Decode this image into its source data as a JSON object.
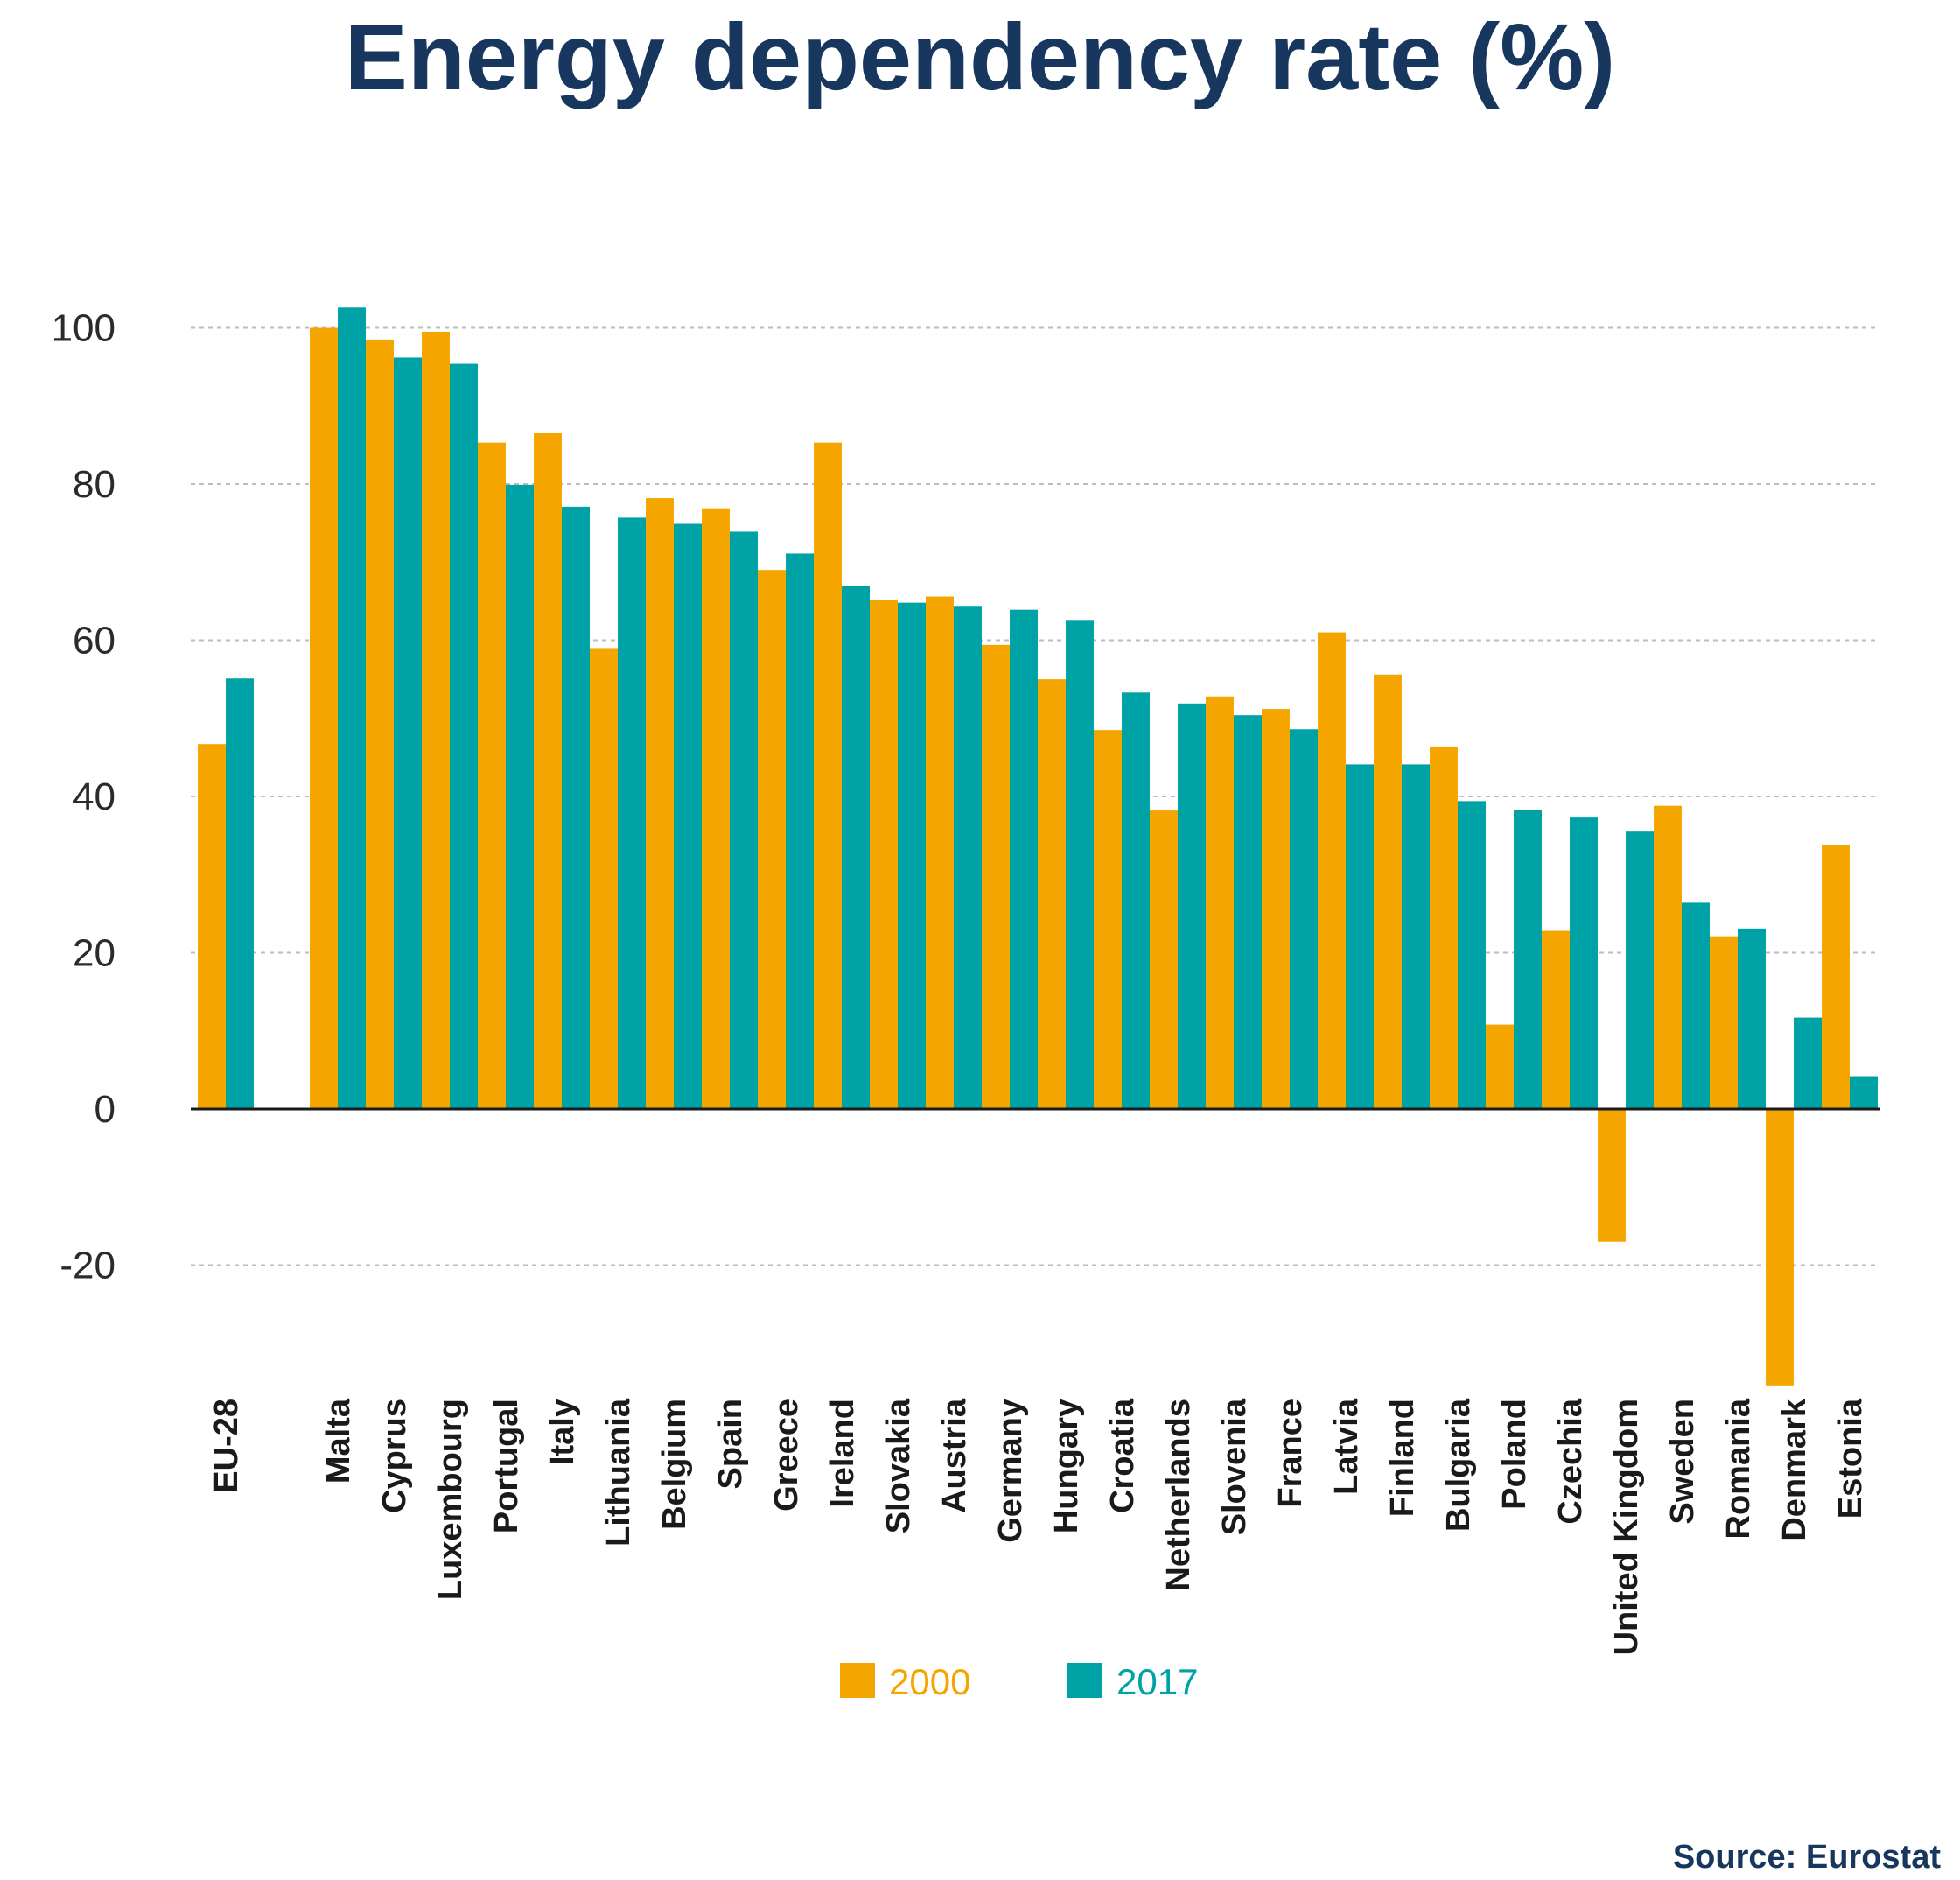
{
  "chart_data": {
    "type": "bar",
    "title": "Energy dependency rate (%)",
    "categories": [
      "EU-28",
      "Malta",
      "Cyprus",
      "Luxembourg",
      "Portugal",
      "Italy",
      "Lithuania",
      "Belgium",
      "Spain",
      "Greece",
      "Ireland",
      "Slovakia",
      "Austria",
      "Germany",
      "Hungary",
      "Croatia",
      "Netherlands",
      "Slovenia",
      "France",
      "Latvia",
      "Finland",
      "Bulgaria",
      "Poland",
      "Czechia",
      "United Kingdom",
      "Sweden",
      "Romania",
      "Denmark",
      "Estonia"
    ],
    "series": [
      {
        "name": "2000",
        "color": "#f5a500",
        "values": [
          46.7,
          100.0,
          98.5,
          99.5,
          85.3,
          86.5,
          59.0,
          78.2,
          76.9,
          69.0,
          85.3,
          65.2,
          65.6,
          59.4,
          55.0,
          48.5,
          38.2,
          52.8,
          51.2,
          61.0,
          55.6,
          46.4,
          10.8,
          22.8,
          -17.0,
          38.8,
          22.0,
          -35.5,
          33.8
        ]
      },
      {
        "name": "2017",
        "color": "#00a3a5",
        "values": [
          55.1,
          102.6,
          96.2,
          95.4,
          79.9,
          77.1,
          75.7,
          74.9,
          73.9,
          71.1,
          67.0,
          64.8,
          64.4,
          63.9,
          62.6,
          53.3,
          51.9,
          50.4,
          48.6,
          44.1,
          44.1,
          39.4,
          38.3,
          37.3,
          35.5,
          26.4,
          23.1,
          11.7,
          4.2
        ]
      }
    ],
    "ylim": [
      -35.5,
      105
    ],
    "yticks": [
      -20,
      0,
      20,
      40,
      60,
      80,
      100
    ],
    "grid": true,
    "legend_position": "bottom-center"
  },
  "source": "Source: Eurostat"
}
